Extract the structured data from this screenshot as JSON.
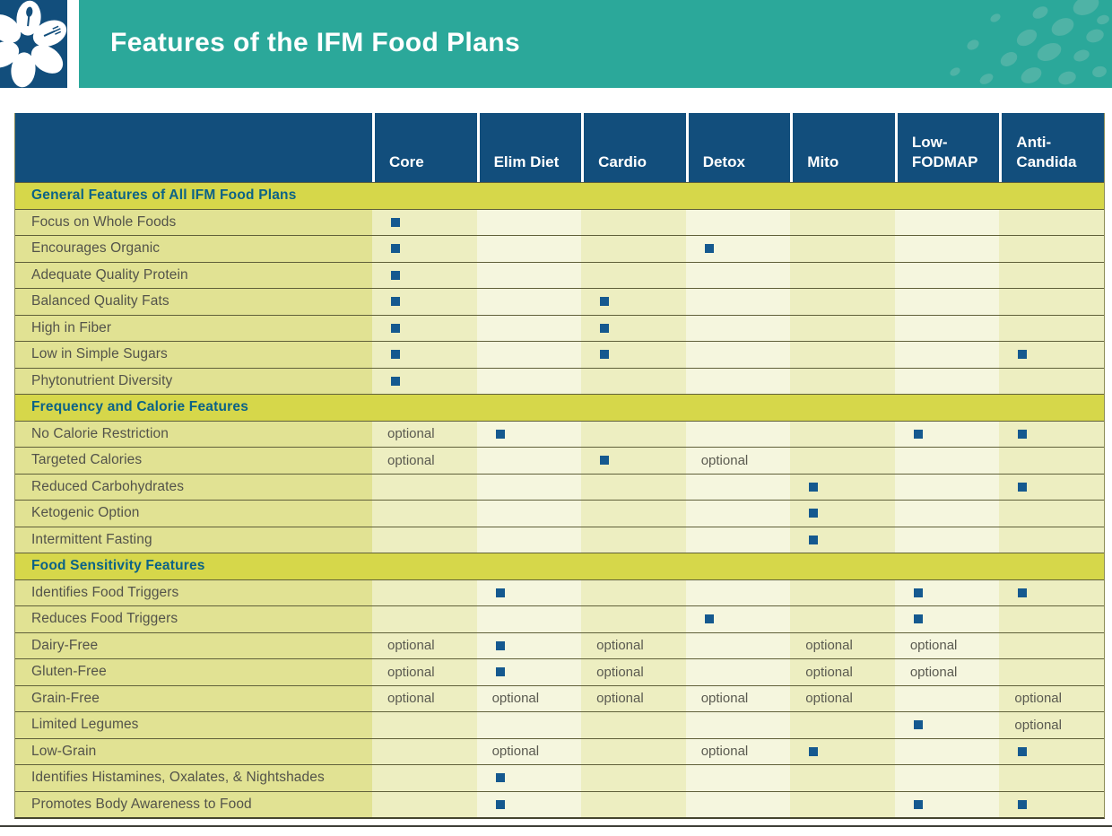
{
  "header": {
    "title": "Features of the IFM Food Plans",
    "logo": "ifm-flower-utensils-logo"
  },
  "colors": {
    "navy": "#124e7c",
    "teal_band": "#2ba89a",
    "teal_dots": "#4fb3a6",
    "section_band": "#d6d74a",
    "label_column": "#e1e293",
    "data_column_odd": "#edeec1",
    "data_column_even": "#f5f6de",
    "marker_blue": "#15598f",
    "section_title_text": "#0b6287",
    "row_text": "#53534a"
  },
  "table": {
    "columns": [
      "Core",
      "Elim Diet",
      "Cardio",
      "Detox",
      "Mito",
      "Low-FODMAP",
      "Anti-Candida"
    ],
    "cell_values": {
      "check_marker": "square",
      "optional_label": "optional"
    },
    "sections": [
      {
        "title": "General Features of All IFM Food Plans",
        "rows": [
          {
            "label": "Focus on Whole Foods",
            "cells": [
              "check",
              "",
              "",
              "",
              "",
              "",
              ""
            ]
          },
          {
            "label": "Encourages Organic",
            "cells": [
              "check",
              "",
              "",
              "check",
              "",
              "",
              ""
            ]
          },
          {
            "label": "Adequate Quality Protein",
            "cells": [
              "check",
              "",
              "",
              "",
              "",
              "",
              ""
            ]
          },
          {
            "label": "Balanced Quality Fats",
            "cells": [
              "check",
              "",
              "check",
              "",
              "",
              "",
              ""
            ]
          },
          {
            "label": "High in Fiber",
            "cells": [
              "check",
              "",
              "check",
              "",
              "",
              "",
              ""
            ]
          },
          {
            "label": "Low in Simple Sugars",
            "cells": [
              "check",
              "",
              "check",
              "",
              "",
              "",
              "check"
            ]
          },
          {
            "label": "Phytonutrient Diversity",
            "cells": [
              "check",
              "",
              "",
              "",
              "",
              "",
              ""
            ]
          }
        ]
      },
      {
        "title": "Frequency and Calorie Features",
        "rows": [
          {
            "label": "No Calorie Restriction",
            "cells": [
              "optional",
              "check",
              "",
              "",
              "",
              "check",
              "check"
            ]
          },
          {
            "label": "Targeted Calories",
            "cells": [
              "optional",
              "",
              "check",
              "optional",
              "",
              "",
              ""
            ]
          },
          {
            "label": "Reduced Carbohydrates",
            "cells": [
              "",
              "",
              "",
              "",
              "check",
              "",
              "check"
            ]
          },
          {
            "label": "Ketogenic Option",
            "cells": [
              "",
              "",
              "",
              "",
              "check",
              "",
              ""
            ]
          },
          {
            "label": "Intermittent Fasting",
            "cells": [
              "",
              "",
              "",
              "",
              "check",
              "",
              ""
            ]
          }
        ]
      },
      {
        "title": "Food Sensitivity Features",
        "rows": [
          {
            "label": "Identifies Food Triggers",
            "cells": [
              "",
              "check",
              "",
              "",
              "",
              "check",
              "check"
            ]
          },
          {
            "label": "Reduces Food Triggers",
            "cells": [
              "",
              "",
              "",
              "check",
              "",
              "check",
              ""
            ]
          },
          {
            "label": "Dairy-Free",
            "cells": [
              "optional",
              "check",
              "optional",
              "",
              "optional",
              "optional",
              ""
            ]
          },
          {
            "label": "Gluten-Free",
            "cells": [
              "optional",
              "check",
              "optional",
              "",
              "optional",
              "optional",
              ""
            ]
          },
          {
            "label": "Grain-Free",
            "cells": [
              "optional",
              "optional",
              "optional",
              "optional",
              "optional",
              "",
              "optional"
            ]
          },
          {
            "label": "Limited Legumes",
            "cells": [
              "",
              "",
              "",
              "",
              "",
              "check",
              "optional"
            ]
          },
          {
            "label": "Low-Grain",
            "cells": [
              "",
              "optional",
              "",
              "optional",
              "check",
              "",
              "check"
            ]
          },
          {
            "label": "Identifies Histamines, Oxalates, & Nightshades",
            "cells": [
              "",
              "check",
              "",
              "",
              "",
              "",
              ""
            ]
          },
          {
            "label": "Promotes Body Awareness to Food",
            "cells": [
              "",
              "check",
              "",
              "",
              "",
              "check",
              "check"
            ]
          }
        ]
      }
    ]
  }
}
